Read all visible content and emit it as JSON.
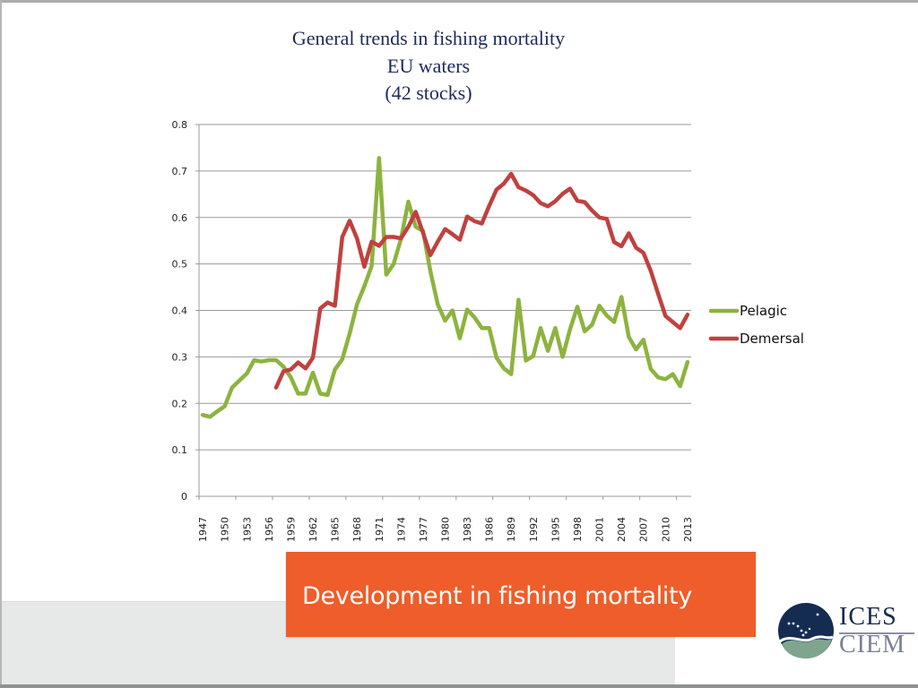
{
  "slide": {
    "banner_text": "Development in fishing mortality",
    "logo": {
      "top_text": "ICES",
      "bottom_text": "CIEM",
      "icon": "ices-ciem-globe-logo"
    },
    "colors": {
      "banner": "#ee5d2a",
      "title": "#1c2a5c",
      "band": "#e7e8e8"
    }
  },
  "chart_data": {
    "type": "line",
    "title": [
      "General trends in fishing mortality",
      "EU waters",
      "(42 stocks)"
    ],
    "xlabel": "",
    "ylabel": "",
    "ylim": [
      0,
      0.8
    ],
    "yticks": [
      "0",
      "0.1",
      "0.2",
      "0.3",
      "0.4",
      "0.5",
      "0.6",
      "0.7",
      "0.8"
    ],
    "ytick_values": [
      0,
      0.1,
      0.2,
      0.3,
      0.4,
      0.5,
      0.6,
      0.7,
      0.8
    ],
    "grid": true,
    "legend_position": "right",
    "x_start": 1947,
    "x_end": 2013,
    "x_label_step": 3,
    "x_tick_step": 5,
    "xtick_labels": [
      "1947",
      "1950",
      "1953",
      "1956",
      "1959",
      "1962",
      "1965",
      "1968",
      "1971",
      "1974",
      "1977",
      "1980",
      "1983",
      "1986",
      "1989",
      "1992",
      "1995",
      "1998",
      "2001",
      "2004",
      "2007",
      "2010",
      "2013"
    ],
    "series": [
      {
        "name": "Pelagic",
        "color": "#8db33f",
        "start_year": 1947,
        "values": [
          0.175,
          0.171,
          0.183,
          0.194,
          0.234,
          0.249,
          0.264,
          0.293,
          0.29,
          0.293,
          0.293,
          0.279,
          0.256,
          0.221,
          0.221,
          0.266,
          0.221,
          0.218,
          0.273,
          0.295,
          0.35,
          0.413,
          0.452,
          0.496,
          0.728,
          0.477,
          0.5,
          0.554,
          0.634,
          0.58,
          0.571,
          0.484,
          0.413,
          0.378,
          0.4,
          0.34,
          0.402,
          0.385,
          0.362,
          0.362,
          0.298,
          0.275,
          0.263,
          0.423,
          0.292,
          0.302,
          0.362,
          0.313,
          0.362,
          0.3,
          0.359,
          0.408,
          0.355,
          0.369,
          0.41,
          0.389,
          0.375,
          0.429,
          0.343,
          0.316,
          0.337,
          0.274,
          0.256,
          0.252,
          0.263,
          0.237,
          0.289
        ]
      },
      {
        "name": "Demersal",
        "color": "#c0413f",
        "start_year": 1957,
        "values": [
          0.234,
          0.269,
          0.273,
          0.288,
          0.275,
          0.298,
          0.404,
          0.417,
          0.41,
          0.558,
          0.593,
          0.555,
          0.494,
          0.548,
          0.539,
          0.558,
          0.558,
          0.555,
          0.58,
          0.612,
          0.567,
          0.519,
          0.548,
          0.575,
          0.564,
          0.552,
          0.602,
          0.592,
          0.587,
          0.625,
          0.66,
          0.673,
          0.694,
          0.665,
          0.658,
          0.648,
          0.631,
          0.624,
          0.635,
          0.651,
          0.662,
          0.636,
          0.633,
          0.615,
          0.6,
          0.597,
          0.547,
          0.538,
          0.566,
          0.535,
          0.524,
          0.485,
          0.436,
          0.388,
          0.375,
          0.362,
          0.391
        ]
      }
    ]
  }
}
